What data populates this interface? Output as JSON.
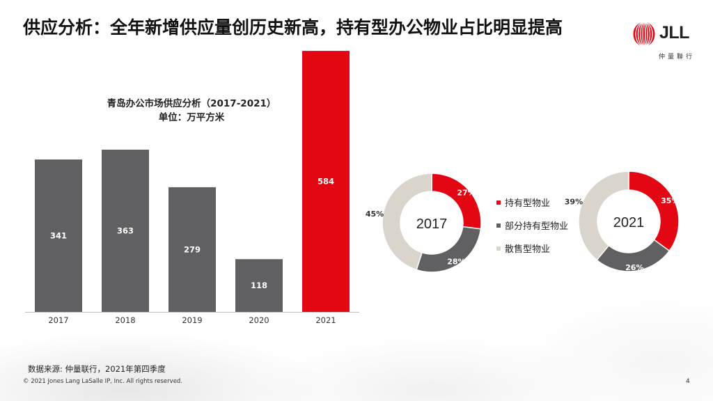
{
  "header": {
    "title": "供应分析：全年新增供应量创历史新高，持有型办公物业占比明显提高"
  },
  "logo": {
    "brand": "JLL",
    "subtitle": "仲量聯行"
  },
  "chart_data": [
    {
      "type": "bar",
      "title": "青岛办公市场供应分析（2017-2021）",
      "subtitle": "单位：万平方米",
      "categories": [
        "2017",
        "2018",
        "2019",
        "2020",
        "2021"
      ],
      "values": [
        341,
        363,
        279,
        118,
        584
      ],
      "value_labels": [
        "341",
        "363",
        "279",
        "118",
        "584"
      ],
      "ylim": [
        0,
        620
      ],
      "grid": false,
      "colors": [
        "#606062",
        "#606062",
        "#606062",
        "#606062",
        "#e30613"
      ]
    },
    {
      "type": "pie",
      "center_label": "2017",
      "categories": [
        "持有型物业",
        "部分持有型物业",
        "散售型物业"
      ],
      "values": [
        27,
        28,
        45
      ],
      "value_labels": [
        "27%",
        "28%",
        "45%"
      ],
      "colors": [
        "#e30613",
        "#606062",
        "#d9d4cc"
      ]
    },
    {
      "type": "pie",
      "center_label": "2021",
      "categories": [
        "持有型物业",
        "部分持有型物业",
        "散售型物业"
      ],
      "values": [
        35,
        26,
        39
      ],
      "value_labels": [
        "35%",
        "26%",
        "39%"
      ],
      "colors": [
        "#e30613",
        "#606062",
        "#d9d4cc"
      ]
    }
  ],
  "legend": {
    "items": [
      {
        "label": "持有型物业",
        "color": "#e30613"
      },
      {
        "label": "部分持有型物业",
        "color": "#606062"
      },
      {
        "label": "散售型物业",
        "color": "#d9d4cc"
      }
    ]
  },
  "footer": {
    "source": "数据来源: 仲量联行，2021年第四季度",
    "copyright": "© 2021 Jones Lang LaSalle IP, Inc. All rights reserved.",
    "page_number": "4"
  }
}
